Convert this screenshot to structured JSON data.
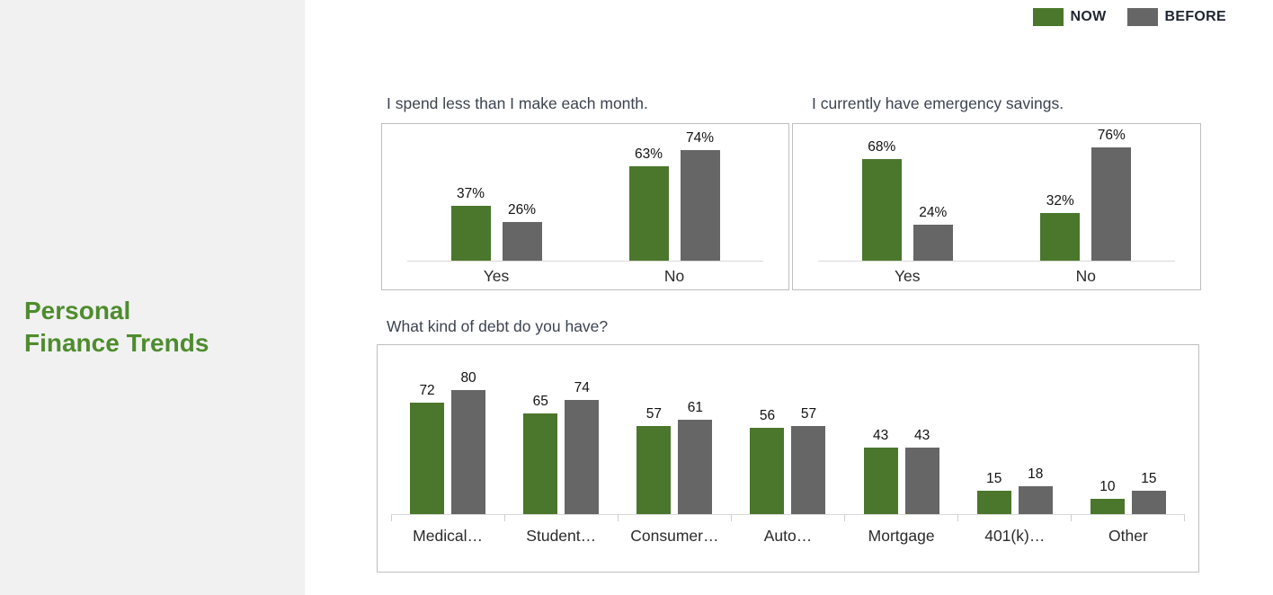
{
  "sidebar": {
    "title_lines": [
      "Personal",
      "Finance Trends"
    ],
    "accent_color": "#4e8c2d",
    "background": "#f1f1f1"
  },
  "legend": {
    "position": "top-right",
    "items": [
      {
        "label": "NOW",
        "color": "#4a772b"
      },
      {
        "label": "BEFORE",
        "color": "#666666"
      }
    ]
  },
  "chart_data": [
    {
      "type": "bar",
      "title": "I spend less than I make each month.",
      "categories": [
        "Yes",
        "No"
      ],
      "value_format": "percent",
      "series": [
        {
          "name": "NOW",
          "values": [
            37,
            63
          ]
        },
        {
          "name": "BEFORE",
          "values": [
            26,
            74
          ]
        }
      ],
      "ylim": [
        0,
        90
      ],
      "grid": false,
      "data_labels": [
        "37%",
        "26%",
        "63%",
        "74%"
      ]
    },
    {
      "type": "bar",
      "title": "I currently have emergency savings.",
      "categories": [
        "Yes",
        "No"
      ],
      "value_format": "percent",
      "series": [
        {
          "name": "NOW",
          "values": [
            68,
            32
          ]
        },
        {
          "name": "BEFORE",
          "values": [
            24,
            76
          ]
        }
      ],
      "ylim": [
        0,
        90
      ],
      "grid": false,
      "data_labels": [
        "68%",
        "24%",
        "32%",
        "76%"
      ]
    },
    {
      "type": "bar",
      "title": "What kind of debt do you have?",
      "categories": [
        "Medical…",
        "Student…",
        "Consumer…",
        "Auto…",
        "Mortgage",
        "401(k)…",
        "Other"
      ],
      "value_format": "number",
      "series": [
        {
          "name": "NOW",
          "values": [
            72,
            65,
            57,
            56,
            43,
            15,
            10
          ]
        },
        {
          "name": "BEFORE",
          "values": [
            80,
            74,
            61,
            57,
            43,
            18,
            15
          ]
        }
      ],
      "ylim": [
        0,
        110
      ],
      "grid": false
    }
  ]
}
